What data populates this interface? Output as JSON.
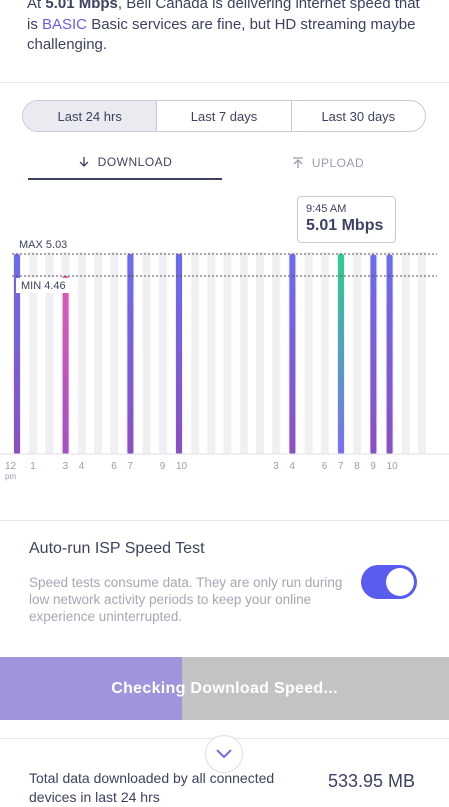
{
  "summary": {
    "part1": "At ",
    "speed": "5.01 Mbps",
    "part2": ", Bell Canada is delivering internet speed that is ",
    "tier": "BASIC",
    "part3": " Basic services are fine, but HD streaming maybe challenging."
  },
  "range_tabs": [
    "Last 24 hrs",
    "Last 7 days",
    "Last 30 days"
  ],
  "selected_range": "Last 24 hrs",
  "direction_tabs": {
    "download": "DOWNLOAD",
    "upload": "UPLOAD"
  },
  "chart": {
    "max_label": "MAX 5.03",
    "min_label": "MIN 4.46",
    "tooltip_time": "9:45 AM",
    "tooltip_value": "5.01 Mbps",
    "x_ticks": [
      "12",
      "1",
      "3",
      "4",
      "6",
      "7",
      "9",
      "10",
      "3",
      "4",
      "6",
      "7",
      "8",
      "9",
      "10"
    ],
    "x_sub": "pm"
  },
  "chart_data": {
    "type": "bar",
    "title": "",
    "xlabel": "",
    "ylabel": "",
    "max": 5.03,
    "min": 4.46,
    "bars": [
      {
        "pos": 0,
        "value": 5.03,
        "color": "#6a6cf0"
      },
      {
        "pos": 1,
        "value": 4.46,
        "color": "#e0509b"
      },
      {
        "pos": 2,
        "value": 5.03,
        "color": "#6a6cf0"
      },
      {
        "pos": 3,
        "value": 5.03,
        "color": "#6a6cf0"
      },
      {
        "pos": 4,
        "value": 5.03,
        "color": "#6a6cf0"
      },
      {
        "pos": 5,
        "value": 5.03,
        "color": "#2ccf8c"
      },
      {
        "pos": 6,
        "value": 5.01,
        "color": "#6a6cf0"
      },
      {
        "pos": 7,
        "value": 5.01,
        "color": "#6a6cf0"
      }
    ]
  },
  "autorun": {
    "title": "Auto-run ISP Speed Test",
    "description": "Speed tests consume data. They are only run during low network activity periods to keep your online experience uninterrupted.",
    "enabled": true
  },
  "progress": {
    "label": "Checking Download Speed...",
    "fraction": 0.405
  },
  "total": {
    "label": "Total data downloaded by all connected devices in last 24 hrs",
    "value": "533.95 MB"
  },
  "colors": {
    "accent": "#5a5cf0",
    "text": "#3d4260",
    "muted": "#a5a7b6"
  }
}
